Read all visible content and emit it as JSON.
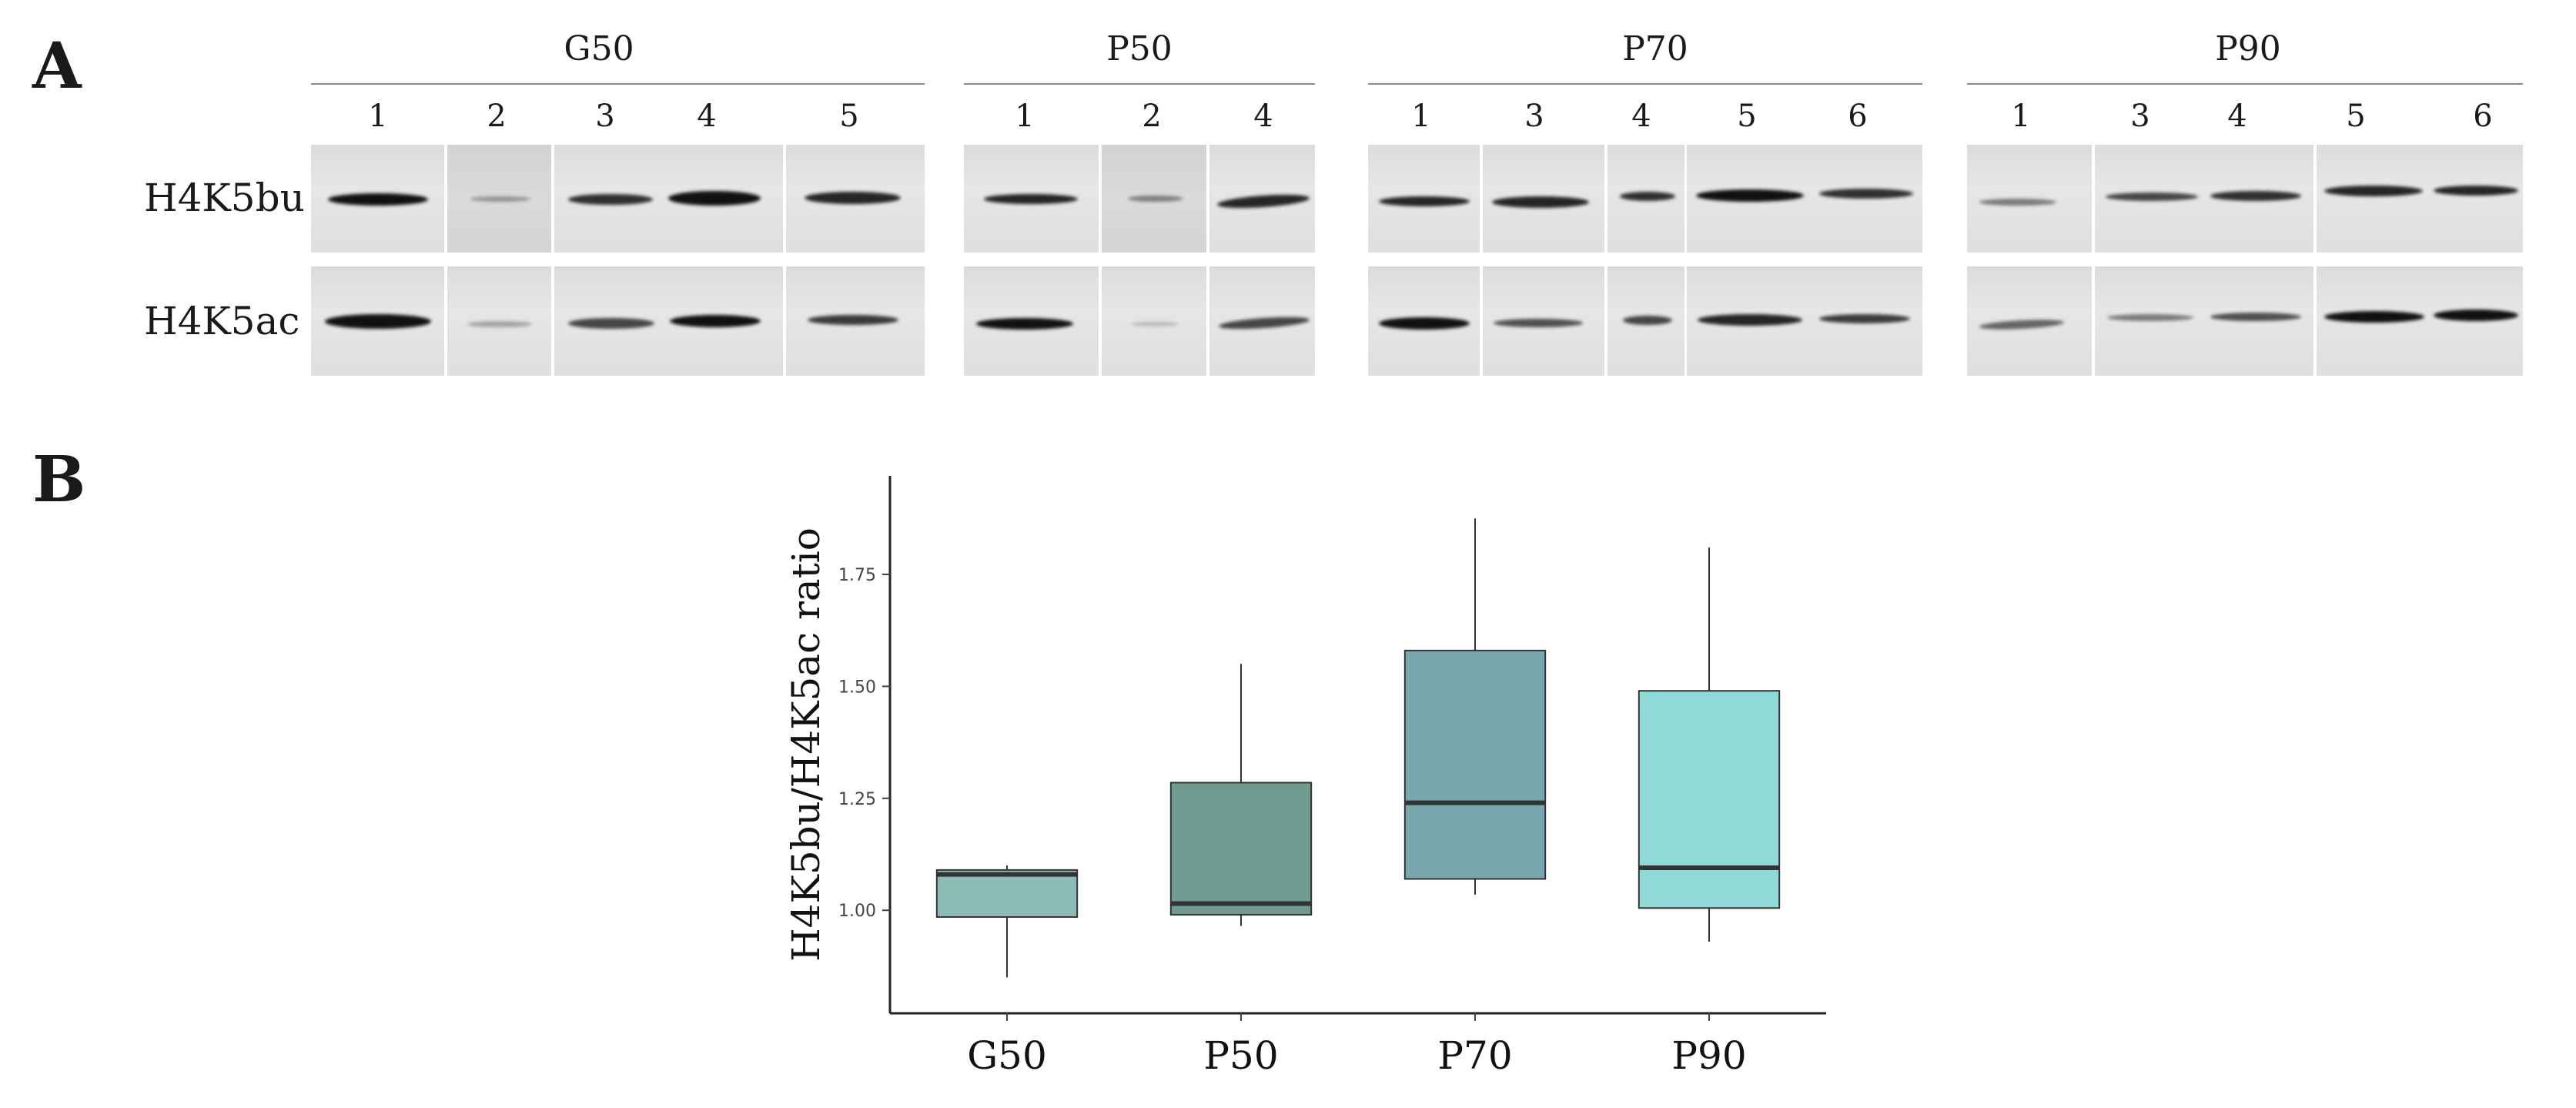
{
  "panel_a": {
    "letter": "A",
    "row_labels": [
      "H4K5bu",
      "H4K5ac"
    ],
    "groups": [
      {
        "name": "G50",
        "lanes": [
          "1",
          "2",
          "3",
          "4",
          "5"
        ]
      },
      {
        "name": "P50",
        "lanes": [
          "1",
          "2",
          "4"
        ]
      },
      {
        "name": "P70",
        "lanes": [
          "1",
          "3",
          "4",
          "5",
          "6"
        ]
      },
      {
        "name": "P90",
        "lanes": [
          "1",
          "3",
          "4",
          "5",
          "6"
        ]
      }
    ]
  },
  "panel_b": {
    "letter": "B"
  },
  "chart_data": {
    "type": "box",
    "title": "",
    "xlabel": "",
    "ylabel": "H4K5bu/H4K5ac ratio",
    "categories": [
      "G50",
      "P50",
      "P70",
      "P90"
    ],
    "ylim": [
      0.77,
      1.97
    ],
    "yticks": [
      1.0,
      1.25,
      1.5,
      1.75
    ],
    "ytick_labels": [
      "1.00",
      "1.25",
      "1.50",
      "1.75"
    ],
    "boxes": [
      {
        "name": "G50",
        "min": 0.85,
        "q1": 0.985,
        "median": 1.08,
        "q3": 1.09,
        "max": 1.1,
        "color": "#8cbbb6"
      },
      {
        "name": "P50",
        "min": 0.965,
        "q1": 0.99,
        "median": 1.015,
        "q3": 1.285,
        "max": 1.55,
        "color": "#6f9991"
      },
      {
        "name": "P70",
        "min": 1.035,
        "q1": 1.07,
        "median": 1.24,
        "q3": 1.58,
        "max": 1.875,
        "color": "#78a8ae"
      },
      {
        "name": "P90",
        "min": 0.93,
        "q1": 1.005,
        "median": 1.095,
        "q3": 1.49,
        "max": 1.81,
        "color": "#8fd9d6"
      }
    ]
  }
}
